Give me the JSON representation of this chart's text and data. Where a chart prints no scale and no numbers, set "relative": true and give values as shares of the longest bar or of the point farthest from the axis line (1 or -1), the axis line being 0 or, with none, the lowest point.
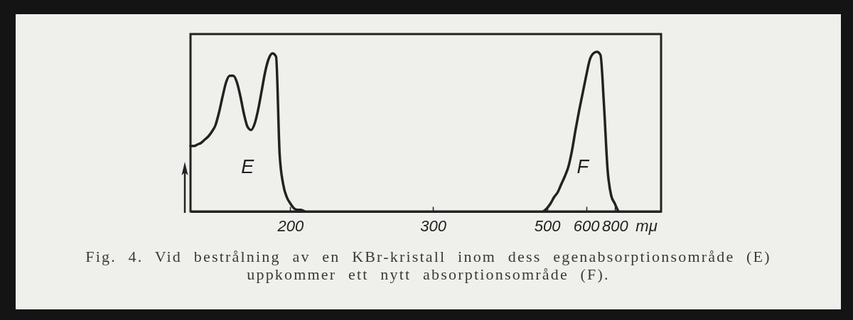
{
  "chart_data": {
    "type": "line",
    "relative": true,
    "xlabel": "mμ",
    "grid": false,
    "categories": [
      null,
      null,
      null,
      null,
      null,
      null,
      null,
      null,
      null,
      null,
      null,
      null,
      null,
      null,
      null,
      null,
      null,
      null,
      null,
      null,
      null,
      null,
      null,
      null,
      null,
      null,
      null,
      null,
      "200",
      null,
      null,
      null,
      null,
      null,
      null,
      null,
      null,
      null,
      null,
      null,
      null,
      null,
      null,
      null,
      null,
      null,
      null,
      null,
      null,
      null,
      null,
      null,
      null,
      null,
      null,
      null,
      null,
      null,
      null,
      null,
      null,
      null,
      null,
      null,
      null,
      null,
      null,
      null,
      "300",
      null,
      null,
      null,
      null,
      null,
      null,
      null,
      null,
      null,
      null,
      null,
      null,
      null,
      null,
      null,
      null,
      null,
      null,
      null,
      null,
      null,
      null,
      null,
      null,
      null,
      null,
      null,
      null,
      null,
      null,
      null,
      "500",
      null,
      null,
      null,
      null,
      null,
      null,
      null,
      null,
      null,
      null,
      "600",
      null,
      null,
      null,
      null,
      null,
      null,
      null,
      "800",
      null,
      null,
      null,
      null,
      null,
      null,
      null,
      null,
      null,
      null,
      null,
      null,
      null
    ],
    "series": [
      {
        "name": "E",
        "color": "#222222",
        "values": [
          0.41,
          0.41,
          0.42,
          0.43,
          0.45,
          0.47,
          0.5,
          0.54,
          0.62,
          0.72,
          0.81,
          0.85,
          0.85,
          0.81,
          0.72,
          0.61,
          0.53,
          0.51,
          0.55,
          0.64,
          0.76,
          0.88,
          0.96,
          0.99,
          0.97,
          0.36,
          0.17,
          0.09,
          0.05,
          0.02,
          0.01,
          0.01,
          0,
          null,
          null,
          null,
          null,
          null,
          null,
          null,
          null,
          null,
          null,
          null,
          null,
          null,
          null,
          null,
          null,
          null,
          null,
          null,
          null,
          null,
          null,
          null,
          null,
          null,
          null,
          null,
          null,
          null,
          null,
          null,
          null,
          null,
          null,
          null,
          null,
          null,
          null,
          null,
          null,
          null,
          null,
          null,
          null,
          null,
          null,
          null,
          null,
          null,
          null,
          null,
          null,
          null,
          null,
          null,
          null,
          null,
          null,
          null,
          null,
          null,
          null,
          null,
          null,
          null,
          null,
          null,
          null,
          null,
          null,
          null,
          null,
          null,
          null,
          null,
          null,
          null,
          null,
          null,
          null,
          null,
          null,
          null,
          null,
          null,
          null,
          null,
          null,
          null,
          null,
          null,
          null,
          null,
          null,
          null,
          null,
          null,
          null,
          null,
          null
        ]
      },
      {
        "name": "F",
        "color": "#222222",
        "values": [
          null,
          null,
          null,
          null,
          null,
          null,
          null,
          null,
          null,
          null,
          null,
          null,
          null,
          null,
          null,
          null,
          null,
          null,
          null,
          null,
          null,
          null,
          null,
          null,
          null,
          null,
          null,
          null,
          null,
          null,
          null,
          null,
          null,
          null,
          null,
          null,
          null,
          null,
          null,
          null,
          null,
          null,
          null,
          null,
          null,
          null,
          null,
          null,
          null,
          null,
          null,
          null,
          null,
          null,
          null,
          null,
          null,
          null,
          null,
          null,
          null,
          null,
          null,
          null,
          null,
          null,
          null,
          null,
          null,
          null,
          null,
          null,
          null,
          null,
          null,
          null,
          null,
          null,
          null,
          null,
          null,
          null,
          null,
          null,
          null,
          null,
          null,
          null,
          null,
          null,
          null,
          null,
          null,
          null,
          null,
          null,
          null,
          null,
          null,
          0,
          0.02,
          0.05,
          0.09,
          0.12,
          0.17,
          0.22,
          0.28,
          0.38,
          0.51,
          0.63,
          0.74,
          0.85,
          0.95,
          0.99,
          1,
          0.98,
          0.66,
          0.26,
          0.1,
          0.05,
          0,
          null,
          null,
          null,
          null,
          null,
          null,
          null,
          null,
          null,
          null,
          null,
          null
        ]
      }
    ],
    "annotations": [
      "Fig. 4. Vid bestrålning av en KBr-kristall inom dess egenabsorptionsområde (E) uppkommer ett nytt absorptionsområde (F)."
    ]
  }
}
